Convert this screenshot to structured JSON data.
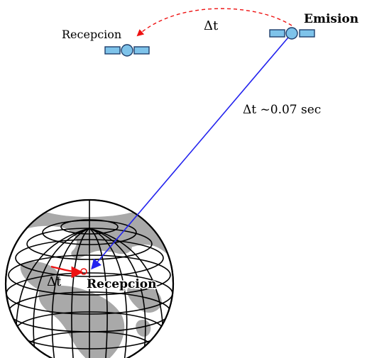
{
  "labels": {
    "emission": "Emision",
    "reception_sat": "Recepcion",
    "reception_earth": "Recepcion",
    "delta_top": "Δt",
    "delta_ray": "Δt  ~0.07 sec",
    "delta_earth": "Δt"
  },
  "colors": {
    "satellite_fill": "#7ec3ea",
    "satellite_stroke": "#1f3f6b",
    "signal_ray": "#2222ee",
    "motion_arrow": "#ee1111",
    "land": "#a9a9a9",
    "grid": "#000000"
  },
  "icons": {
    "satellite": "satellite-icon",
    "globe": "globe-icon"
  }
}
